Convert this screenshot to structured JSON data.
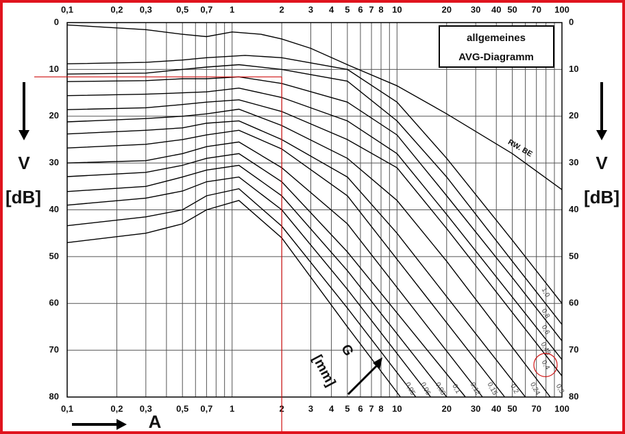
{
  "chart_data": {
    "type": "line",
    "title": "allgemeines",
    "subtitle": "AVG-Diagramm",
    "y_label": "V",
    "y_unit": "[dB]",
    "x_label": "A",
    "size_label": "G",
    "size_unit": "[mm]",
    "x_log": true,
    "y_inverted": true,
    "grid": true,
    "xlim": [
      0.1,
      100
    ],
    "ylim": [
      0,
      80
    ],
    "xticks": [
      {
        "value": 0.1,
        "label": "0,1"
      },
      {
        "value": 0.2,
        "label": "0,2"
      },
      {
        "value": 0.3,
        "label": "0,3"
      },
      {
        "value": 0.5,
        "label": "0,5"
      },
      {
        "value": 0.7,
        "label": "0,7"
      },
      1,
      2,
      3,
      4,
      5,
      6,
      7,
      8,
      10,
      20,
      30,
      40,
      50,
      70,
      100
    ],
    "xgrid": [
      0.4,
      0.6,
      0.8,
      0.9,
      9,
      60,
      80,
      90
    ],
    "yticks": [
      0,
      10,
      20,
      30,
      40,
      50,
      60,
      70,
      80
    ],
    "reference": {
      "x": 2,
      "y": 11.6,
      "color": "#d01010"
    },
    "highlight_series": 5,
    "series": [
      {
        "name": "RW. BE",
        "color": "#000000",
        "x": [
          0.1,
          0.3,
          0.5,
          0.7,
          1,
          1.5,
          2,
          3,
          5,
          10,
          20,
          50,
          100
        ],
        "values": [
          0.5,
          1.5,
          2.5,
          3,
          2,
          2.5,
          3.5,
          5.5,
          9,
          13.5,
          19.5,
          28,
          35.7
        ]
      },
      {
        "name": "1,0",
        "color": "#000000",
        "x": [
          0.1,
          0.3,
          0.5,
          0.7,
          1.2,
          2,
          5,
          10,
          20,
          50,
          100
        ],
        "values": [
          8.8,
          8.5,
          8,
          7.5,
          7,
          7.5,
          10,
          17,
          29,
          46.5,
          60
        ]
      },
      {
        "name": "0,8",
        "color": "#000000",
        "x": [
          0.1,
          0.3,
          0.5,
          0.7,
          1.1,
          2,
          5,
          10,
          20,
          50,
          100
        ],
        "values": [
          11,
          10.8,
          10,
          9.5,
          9,
          10,
          12.5,
          21,
          33,
          51,
          64.5
        ]
      },
      {
        "name": "0,6",
        "color": "#000000",
        "x": [
          0.1,
          0.3,
          0.5,
          0.7,
          1.1,
          2,
          5,
          10,
          20,
          50,
          100
        ],
        "values": [
          12.6,
          12.4,
          12,
          12,
          11.6,
          13,
          17,
          24,
          37,
          54.5,
          68
        ]
      },
      {
        "name": "0,48",
        "color": "#000000",
        "x": [
          0.1,
          0.3,
          0.5,
          0.7,
          1.1,
          2,
          5,
          10,
          20,
          100
        ],
        "values": [
          15.6,
          15.3,
          15,
          14.8,
          14,
          16,
          21,
          28,
          41,
          72
        ]
      },
      {
        "name": "0,4",
        "color": "#000000",
        "x": [
          0.1,
          0.3,
          0.5,
          0.7,
          1.1,
          2,
          5,
          10,
          20,
          100
        ],
        "values": [
          18.6,
          18.2,
          17.5,
          17,
          16.5,
          19,
          25,
          31,
          44,
          75.5
        ]
      },
      {
        "name": "0,3",
        "color": "#000000",
        "x": [
          0.1,
          0.3,
          0.5,
          0.7,
          1.1,
          2,
          5,
          10,
          20,
          85
        ],
        "values": [
          21.2,
          20.5,
          20,
          19.5,
          18.5,
          22,
          29,
          38,
          51,
          80
        ]
      },
      {
        "name": "0,24",
        "color": "#000000",
        "x": [
          0.1,
          0.3,
          0.5,
          0.7,
          1.1,
          2,
          5,
          10,
          60
        ],
        "values": [
          23.8,
          23,
          22.5,
          21.5,
          21,
          25,
          33,
          45,
          80
        ]
      },
      {
        "name": "0,2",
        "color": "#000000",
        "x": [
          0.1,
          0.3,
          0.5,
          0.7,
          1.1,
          2,
          5,
          45
        ],
        "values": [
          26.8,
          26,
          25,
          24,
          23,
          27,
          37,
          80
        ]
      },
      {
        "name": "0,15",
        "color": "#000000",
        "x": [
          0.1,
          0.3,
          0.5,
          0.7,
          1.1,
          2,
          5,
          33
        ],
        "values": [
          30,
          29.5,
          28,
          26.5,
          25.5,
          31,
          43,
          80
        ]
      },
      {
        "name": "0,12",
        "color": "#000000",
        "x": [
          0.1,
          0.3,
          0.5,
          0.7,
          1.1,
          2,
          5,
          26
        ],
        "values": [
          32.9,
          32,
          30.5,
          29,
          28,
          34,
          49,
          80
        ]
      },
      {
        "name": "0,1",
        "color": "#000000",
        "x": [
          0.1,
          0.3,
          0.5,
          0.7,
          1.1,
          2,
          5,
          20
        ],
        "values": [
          36.1,
          35,
          33,
          31.5,
          30.5,
          37,
          53,
          80
        ]
      },
      {
        "name": "0,08",
        "color": "#000000",
        "x": [
          0.1,
          0.3,
          0.5,
          0.7,
          1.1,
          2,
          5,
          16
        ],
        "values": [
          39,
          37.5,
          36,
          34,
          33,
          40,
          57,
          80
        ]
      },
      {
        "name": "0,06",
        "color": "#000000",
        "x": [
          0.1,
          0.3,
          0.5,
          0.7,
          1.1,
          2,
          5,
          13
        ],
        "values": [
          43.4,
          41.5,
          40,
          37,
          35.5,
          43.5,
          61,
          80
        ]
      },
      {
        "name": "0,05",
        "color": "#000000",
        "x": [
          0.1,
          0.3,
          0.5,
          0.7,
          1.1,
          2,
          5,
          10.5
        ],
        "values": [
          47,
          45,
          43,
          40,
          38,
          46,
          65,
          80
        ]
      }
    ]
  }
}
